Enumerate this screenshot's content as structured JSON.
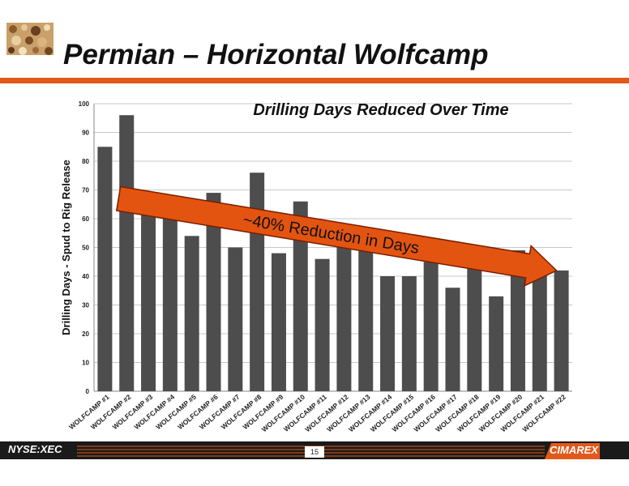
{
  "slide": {
    "title": "Permian – Horizontal Wolfcamp",
    "footer_ticker": "NYSE:XEC",
    "page_number": "15",
    "company_logo": "CIMAREX",
    "logo_icon": "rock-texture-icon"
  },
  "colors": {
    "accent": "#e2591b",
    "bar": "#4d4d4d",
    "arrow": "#e35411",
    "arrow_outline": "#7a1e00"
  },
  "chart_data": {
    "type": "bar",
    "title": "Drilling Days Reduced Over Time",
    "ylabel": "Drilling Days - Spud to Rig Release",
    "xlabel": "",
    "ylim": [
      0,
      100
    ],
    "yticks": [
      0,
      10,
      20,
      30,
      40,
      50,
      60,
      70,
      80,
      90,
      100
    ],
    "grid": true,
    "categories": [
      "WOLFCAMP #1",
      "WOLFCAMP #2",
      "WOLFCAMP #3",
      "WOLFCAMP #4",
      "WOLFCAMP #5",
      "WOLFCAMP #6",
      "WOLFCAMP #7",
      "WOLFCAMP #8",
      "WOLFCAMP #9",
      "WOLFCAMP #10",
      "WOLFCAMP #11",
      "WOLFCAMP #12",
      "WOLFCAMP #13",
      "WOLFCAMP #14",
      "WOLFCAMP #15",
      "WOLFCAMP #16",
      "WOLFCAMP #17",
      "WOLFCAMP #18",
      "WOLFCAMP #19",
      "WOLFCAMP #20",
      "WOLFCAMP #21",
      "WOLFCAMP #22"
    ],
    "values": [
      85,
      96,
      62,
      60,
      54,
      69,
      50,
      76,
      48,
      66,
      46,
      58,
      51,
      40,
      40,
      45,
      36,
      46,
      33,
      49,
      42,
      42
    ],
    "annotation": {
      "text": "~40% Reduction in Days",
      "start_index": 1,
      "end_index": 21,
      "start_value": 67,
      "end_value": 40
    }
  }
}
